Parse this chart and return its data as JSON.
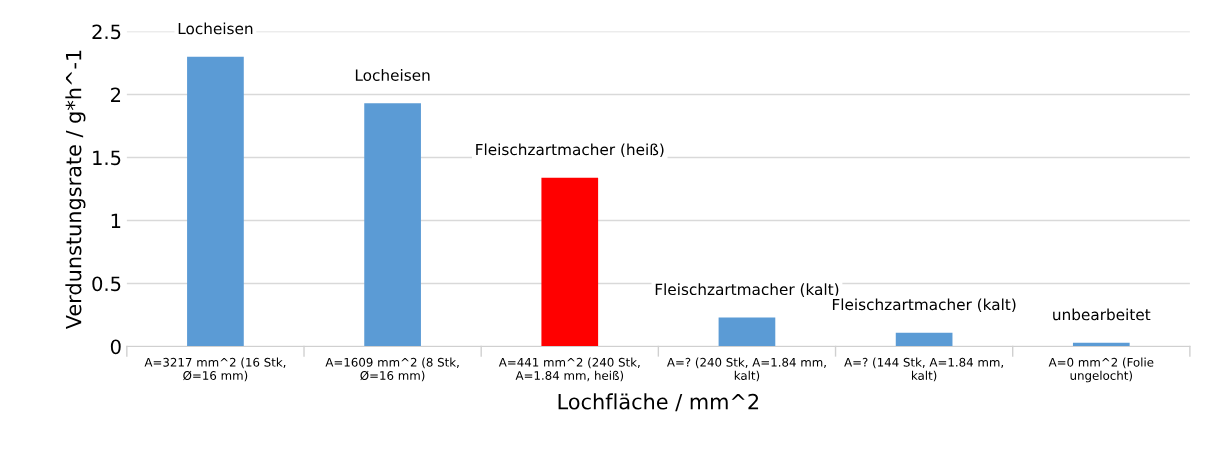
{
  "chart_data": {
    "type": "bar",
    "categories": [
      "A=3217 mm^2 (16 Stk,\nØ=16 mm)",
      "A=1609 mm^2 (8 Stk,\nØ=16 mm)",
      "A=441 mm^2 (240 Stk,\nA=1.84 mm, heiß)",
      "A=? (240 Stk, A=1.84 mm,\nkalt)",
      "A=? (144 Stk, A=1.84 mm,\nkalt)",
      "A=0 mm^2 (Folie\nungelocht)"
    ],
    "values": [
      2.3,
      1.93,
      1.34,
      0.23,
      0.11,
      0.03
    ],
    "colors": [
      "#5b9bd5",
      "#5b9bd5",
      "#ff0000",
      "#5b9bd5",
      "#5b9bd5",
      "#5b9bd5"
    ],
    "xlabel": "Lochfläche / mm^2",
    "ylabel": "Verdunstungsrate / g*h^-1",
    "ylim": [
      0,
      2.5
    ],
    "yticks": [
      0,
      0.5,
      1,
      1.5,
      2,
      2.5
    ],
    "grid": "y",
    "annotations": [
      {
        "text": "Locheisen",
        "x": "A=3217 mm^2 (16 Stk,\nØ=16 mm)",
        "y": 2.3
      },
      {
        "text": "Locheisen",
        "x": "A=1609 mm^2 (8 Stk,\nØ=16 mm)",
        "y": 1.93
      },
      {
        "text": "Fleischzartmacher (heiß)",
        "x": "A=441 mm^2 (240 Stk,\nA=1.84 mm, heiß)",
        "y": 1.34
      },
      {
        "text": "Fleischzartmacher (kalt)",
        "x": "A=? (240 Stk, A=1.84 mm,\nkalt)",
        "y": 0.23
      },
      {
        "text": "Fleischzartmacher (kalt)",
        "x": "A=? (144 Stk, A=1.84 mm,\nkalt)",
        "y": 0.11
      },
      {
        "text": "unbearbeitet",
        "x": "A=0 mm^2 (Folie\nungelocht)",
        "y": 0.03
      }
    ]
  }
}
